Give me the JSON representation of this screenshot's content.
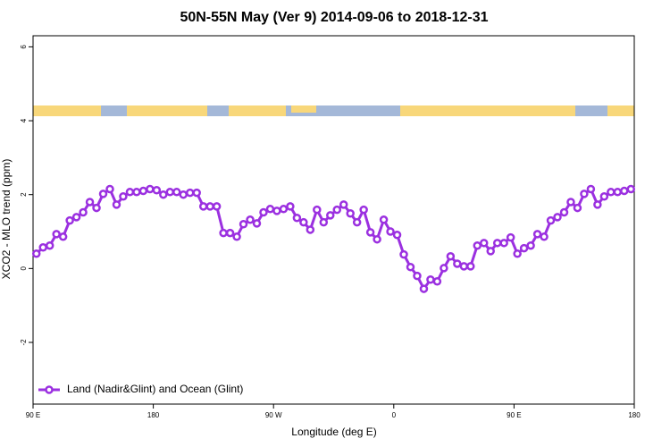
{
  "chart_data": {
    "type": "line",
    "title": "50N-55N May (Ver 9)   2014-09-06 to 2018-12-31",
    "xlabel": "Longitude (deg E)",
    "ylabel": "XCO2 - MLO trend (ppm)",
    "xlim": [
      90,
      540
    ],
    "ylim": [
      -3.67,
      6.3
    ],
    "xticks": [
      {
        "value": 90,
        "label": "90 E"
      },
      {
        "value": 180,
        "label": "180"
      },
      {
        "value": 270,
        "label": "90 W"
      },
      {
        "value": 360,
        "label": "0"
      },
      {
        "value": 450,
        "label": "90 E"
      },
      {
        "value": 540,
        "label": "180"
      }
    ],
    "yticks": [
      -2,
      0,
      2,
      4,
      6
    ],
    "legend": "bottom-left",
    "x": [
      92.5,
      97.5,
      102.5,
      107.5,
      112.5,
      117.5,
      122.5,
      127.5,
      132.5,
      137.5,
      142.5,
      147.5,
      152.5,
      157.5,
      162.5,
      167.5,
      172.5,
      177.5,
      182.5,
      187.5,
      192.5,
      197.5,
      202.5,
      207.5,
      212.5,
      217.5,
      222.5,
      227.5,
      232.5,
      237.5,
      242.5,
      247.5,
      252.5,
      257.5,
      262.5,
      267.5,
      272.5,
      277.5,
      282.5,
      287.5,
      292.5,
      297.5,
      302.5,
      307.5,
      312.5,
      317.5,
      322.5,
      327.5,
      332.5,
      337.5,
      342.5,
      347.5,
      352.5,
      357.5,
      362.5,
      367.5,
      372.5,
      377.5,
      382.5,
      387.5,
      392.5,
      397.5,
      402.5,
      407.5,
      412.5,
      417.5,
      422.5,
      427.5,
      432.5,
      437.5,
      442.5,
      447.5,
      452.5,
      457.5,
      462.5,
      467.5,
      472.5,
      477.5,
      482.5,
      487.5,
      492.5,
      497.5,
      502.5,
      507.5,
      512.5,
      517.5,
      522.5,
      527.5,
      532.5,
      537.5
    ],
    "series": [
      {
        "name": "Land (Nadir&Glint) and Ocean (Glint)",
        "color": "#9b30e0",
        "values": [
          0.4,
          0.57,
          0.62,
          0.93,
          0.86,
          1.3,
          1.39,
          1.52,
          1.8,
          1.64,
          2.02,
          2.15,
          1.73,
          1.95,
          2.07,
          2.07,
          2.1,
          2.15,
          2.12,
          2.0,
          2.07,
          2.07,
          2.0,
          2.05,
          2.05,
          1.68,
          1.68,
          1.68,
          0.96,
          0.96,
          0.86,
          1.2,
          1.32,
          1.22,
          1.52,
          1.61,
          1.56,
          1.61,
          1.68,
          1.37,
          1.25,
          1.05,
          1.59,
          1.25,
          1.44,
          1.59,
          1.73,
          1.49,
          1.25,
          1.59,
          0.98,
          0.79,
          1.32,
          1.0,
          0.91,
          0.38,
          0.04,
          -0.2,
          -0.55,
          -0.3,
          -0.35,
          0.01,
          0.33,
          0.13,
          0.06,
          0.06,
          0.62,
          0.69,
          0.47,
          0.69,
          0.69,
          0.84,
          0.4,
          0.55,
          0.62,
          0.93,
          0.86,
          1.3,
          1.39,
          1.52,
          1.8,
          1.64,
          2.02,
          2.15,
          1.73,
          1.95,
          2.07,
          2.07,
          2.1,
          2.15
        ]
      }
    ]
  }
}
